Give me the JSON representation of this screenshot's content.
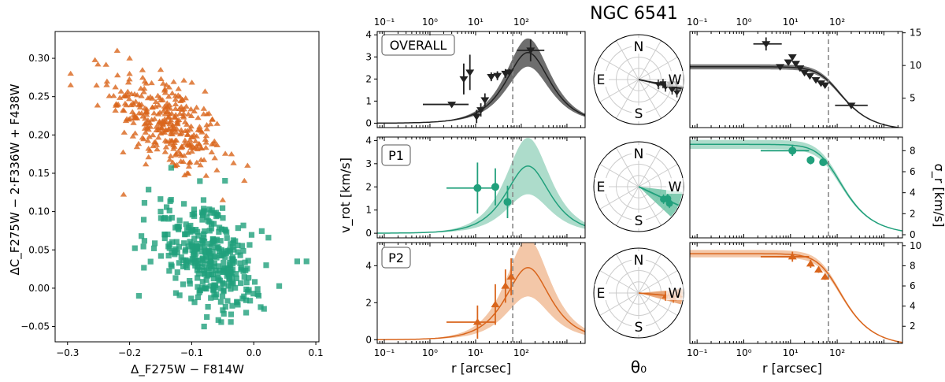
{
  "figure_title": "NGC 6541",
  "chart_data": [
    {
      "id": "scatter",
      "type": "scatter",
      "xlabel": "Δ_F275W − F814W",
      "ylabel": "ΔC_F275W − 2·F336W + F438W",
      "xlim": [
        -0.32,
        0.105
      ],
      "ylim": [
        -0.07,
        0.335
      ],
      "xticks": [
        -0.3,
        -0.2,
        -0.1,
        0.0,
        0.1
      ],
      "xtick_labels": [
        "−0.3",
        "−0.2",
        "−0.1",
        "0.0",
        "0.1"
      ],
      "yticks": [
        -0.05,
        0.0,
        0.05,
        0.1,
        0.15,
        0.2,
        0.25,
        0.3
      ],
      "ytick_labels": [
        "−0.05",
        "0.00",
        "0.05",
        "0.10",
        "0.15",
        "0.20",
        "0.25",
        "0.30"
      ],
      "series": [
        {
          "name": "P2",
          "marker": "triangle",
          "color": "#d9651c",
          "n": 330,
          "x_center": -0.14,
          "y_center": 0.215,
          "x_sd": 0.045,
          "y_sd": 0.035,
          "corr": -0.55,
          "sample_points": [
            [
              -0.295,
              0.28
            ],
            [
              -0.295,
              0.265
            ],
            [
              -0.22,
              0.31
            ],
            [
              -0.2,
              0.3
            ],
            [
              -0.15,
              0.285
            ],
            [
              -0.01,
              0.16
            ],
            [
              -0.05,
              0.115
            ]
          ]
        },
        {
          "name": "P1",
          "marker": "square",
          "color": "#21a07c",
          "n": 360,
          "x_center": -0.075,
          "y_center": 0.04,
          "x_sd": 0.045,
          "y_sd": 0.035,
          "corr": -0.45,
          "sample_points": [
            [
              -0.15,
              0.1
            ],
            [
              -0.185,
              -0.01
            ],
            [
              -0.08,
              -0.05
            ],
            [
              0.07,
              0.035
            ],
            [
              0.085,
              0.035
            ],
            [
              0.02,
              0.03
            ]
          ]
        }
      ]
    },
    {
      "id": "rotation",
      "type": "line",
      "ylabel": "v_rot [km/s]",
      "xlabel": "r [arcsec]",
      "xscale": "log",
      "xlim": [
        0.07,
        2500
      ],
      "xticks": [
        0.1,
        1,
        10,
        100
      ],
      "xtick_labels": [
        "10⁻¹",
        "10⁰",
        "10¹",
        "10²"
      ],
      "vline_x": 65,
      "panels": [
        {
          "name": "OVERALL",
          "color": "#222222",
          "band": "#555555",
          "ylim": [
            -0.2,
            4.15
          ],
          "yticks": [
            0,
            1,
            2,
            3,
            4
          ],
          "model_peak": 3.2,
          "model_peak_r": 140,
          "band_frac": 0.2,
          "points": [
            {
              "r": 3.0,
              "v": 0.85,
              "rlo": 0.7,
              "rhi": 7.0,
              "ve": 0.0
            },
            {
              "r": 5.5,
              "v": 2.0,
              "rlo": 5.5,
              "rhi": 5.5,
              "ve": 0.7
            },
            {
              "r": 7.5,
              "v": 2.3,
              "rlo": 7.5,
              "rhi": 7.5,
              "ve": 0.8
            },
            {
              "r": 10.5,
              "v": 0.3,
              "rlo": 10.5,
              "rhi": 10.5,
              "ve": 0.3
            },
            {
              "r": 13.0,
              "v": 0.6,
              "rlo": 13.0,
              "rhi": 13.0,
              "ve": 0.3
            },
            {
              "r": 16.0,
              "v": 1.05,
              "rlo": 16.0,
              "rhi": 16.0,
              "ve": 0.3
            },
            {
              "r": 22.0,
              "v": 2.1,
              "rlo": 22.0,
              "rhi": 22.0,
              "ve": 0.2
            },
            {
              "r": 30.0,
              "v": 2.15,
              "rlo": 30.0,
              "rhi": 30.0,
              "ve": 0.2
            },
            {
              "r": 45.0,
              "v": 2.25,
              "rlo": 45.0,
              "rhi": 45.0,
              "ve": 0.2
            },
            {
              "r": 55.0,
              "v": 2.3,
              "rlo": 55.0,
              "rhi": 55.0,
              "ve": 0.15
            },
            {
              "r": 160.0,
              "v": 3.3,
              "rlo": 80.0,
              "rhi": 320.0,
              "ve": 0.5
            }
          ]
        },
        {
          "name": "P1",
          "color": "#21a07c",
          "band": "#9fd6c2",
          "ylim": [
            -0.2,
            4.15
          ],
          "yticks": [
            0,
            1,
            2,
            3,
            4
          ],
          "model_peak": 2.9,
          "model_peak_r": 140,
          "band_frac": 0.42,
          "points": [
            {
              "r": 11.0,
              "v": 1.95,
              "rlo": 2.3,
              "rhi": 27.0,
              "ve": 1.1
            },
            {
              "r": 27.0,
              "v": 2.0,
              "rlo": 27.0,
              "rhi": 27.0,
              "ve": 0.8
            },
            {
              "r": 50.0,
              "v": 1.35,
              "rlo": 50.0,
              "rhi": 50.0,
              "ve": 0.7
            }
          ]
        },
        {
          "name": "P2",
          "color": "#d9651c",
          "band": "#f1bd99",
          "ylim": [
            -0.2,
            5.25
          ],
          "yticks": [
            0,
            2,
            4
          ],
          "model_peak": 3.9,
          "model_peak_r": 140,
          "band_frac": 0.4,
          "points": [
            {
              "r": 11.0,
              "v": 0.95,
              "rlo": 2.3,
              "rhi": 27.0,
              "ve": 0.9
            },
            {
              "r": 27.0,
              "v": 1.9,
              "rlo": 27.0,
              "rhi": 27.0,
              "ve": 1.1
            },
            {
              "r": 45.0,
              "v": 2.9,
              "rlo": 45.0,
              "rhi": 45.0,
              "ve": 0.9
            },
            {
              "r": 60.0,
              "v": 3.4,
              "rlo": 60.0,
              "rhi": 60.0,
              "ve": 1.0
            }
          ]
        }
      ]
    },
    {
      "id": "theta0",
      "type": "polar",
      "xlabel": "θ₀",
      "compass": [
        "N",
        "E",
        "S",
        "W"
      ],
      "panels": [
        {
          "name": "OVERALL",
          "color": "#222222",
          "band": "#666666",
          "angle_deg": -12,
          "spread_deg": 4,
          "r_pts": [
            0.45,
            0.55,
            0.62,
            0.7,
            0.78,
            0.85,
            0.9
          ]
        },
        {
          "name": "P1",
          "color": "#21a07c",
          "band": "#6cc3a5",
          "angle_deg": -25,
          "spread_deg": 18,
          "r_pts": [
            0.62,
            0.7,
            0.78
          ]
        },
        {
          "name": "P2",
          "color": "#d9651c",
          "band": "#e89a65",
          "angle_deg": -5,
          "spread_deg": 10,
          "r_pts": [
            0.6,
            0.7,
            0.78,
            0.88
          ]
        }
      ]
    },
    {
      "id": "dispersion",
      "type": "line",
      "ylabel": "σ_r [km/s]",
      "xlabel": "r [arcsec]",
      "xscale": "log",
      "xlim": [
        0.07,
        2500
      ],
      "xticks": [
        0.1,
        1,
        10,
        100
      ],
      "xtick_labels": [
        "10⁻¹",
        "10⁰",
        "10¹",
        "10²"
      ],
      "vline_x": 65,
      "panels": [
        {
          "name": "OVERALL",
          "color": "#222222",
          "band": "#666666",
          "ylim": [
            0.5,
            15.2
          ],
          "yticks": [
            5,
            10,
            15
          ],
          "plateau": 9.8,
          "rc": 75,
          "band_frac": 0.04,
          "points": [
            {
              "r": 3.0,
              "s": 13.3,
              "rlo": 1.6,
              "rhi": 6.5,
              "se": 1.0
            },
            {
              "r": 6.0,
              "s": 9.8,
              "rlo": 6.0,
              "rhi": 6.0,
              "se": 0.4
            },
            {
              "r": 9.0,
              "s": 10.5,
              "rlo": 9.0,
              "rhi": 9.0,
              "se": 0.4
            },
            {
              "r": 11.0,
              "s": 11.3,
              "rlo": 11.0,
              "rhi": 11.0,
              "se": 0.4
            },
            {
              "r": 13.0,
              "s": 10.3,
              "rlo": 13.0,
              "rhi": 13.0,
              "se": 0.3
            },
            {
              "r": 16.0,
              "s": 9.6,
              "rlo": 16.0,
              "rhi": 16.0,
              "se": 0.3
            },
            {
              "r": 20.0,
              "s": 8.9,
              "rlo": 20.0,
              "rhi": 20.0,
              "se": 0.3
            },
            {
              "r": 26.0,
              "s": 8.4,
              "rlo": 26.0,
              "rhi": 26.0,
              "se": 0.3
            },
            {
              "r": 35.0,
              "s": 7.8,
              "rlo": 35.0,
              "rhi": 35.0,
              "se": 0.3
            },
            {
              "r": 45.0,
              "s": 7.3,
              "rlo": 45.0,
              "rhi": 45.0,
              "se": 0.3
            },
            {
              "r": 55.0,
              "s": 7.0,
              "rlo": 55.0,
              "rhi": 55.0,
              "se": 0.3
            },
            {
              "r": 200.0,
              "s": 3.9,
              "rlo": 90.0,
              "rhi": 450.0,
              "se": 0.3
            }
          ]
        },
        {
          "name": "P1",
          "color": "#21a07c",
          "band": "#9fd6c2",
          "ylim": [
            -0.3,
            9.3
          ],
          "yticks": [
            0,
            2,
            4,
            6,
            8
          ],
          "plateau": 8.6,
          "rc": 75,
          "band_frac": 0.05,
          "points": [
            {
              "r": 11.0,
              "s": 8.0,
              "rlo": 2.3,
              "rhi": 25.0,
              "se": 0.5
            },
            {
              "r": 27.0,
              "s": 7.1,
              "rlo": 27.0,
              "rhi": 27.0,
              "se": 0.4
            },
            {
              "r": 50.0,
              "s": 6.9,
              "rlo": 50.0,
              "rhi": 50.0,
              "se": 0.3
            }
          ]
        },
        {
          "name": "P2",
          "color": "#d9651c",
          "band": "#f1bd99",
          "ylim": [
            0.3,
            10.3
          ],
          "yticks": [
            2,
            4,
            6,
            8,
            10
          ],
          "plateau": 9.2,
          "rc": 75,
          "band_frac": 0.04,
          "points": [
            {
              "r": 11.0,
              "s": 8.9,
              "rlo": 2.3,
              "rhi": 25.0,
              "se": 0.5
            },
            {
              "r": 27.0,
              "s": 8.2,
              "rlo": 27.0,
              "rhi": 27.0,
              "se": 0.4
            },
            {
              "r": 40.0,
              "s": 7.6,
              "rlo": 40.0,
              "rhi": 40.0,
              "se": 0.3
            },
            {
              "r": 55.0,
              "s": 6.9,
              "rlo": 55.0,
              "rhi": 55.0,
              "se": 0.3
            }
          ]
        }
      ]
    }
  ]
}
